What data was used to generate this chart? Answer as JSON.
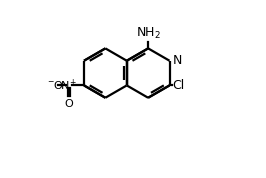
{
  "bg_color": "#ffffff",
  "bond_color": "#000000",
  "text_color": "#000000",
  "lw": 1.6,
  "doff": 0.018,
  "fs": 8.5,
  "fig_width": 2.66,
  "fig_height": 1.78,
  "dpi": 100,
  "R": 0.155,
  "cx_r": 0.595,
  "cy_r": 0.5,
  "xlim": [
    0.0,
    1.0
  ],
  "ylim": [
    -0.15,
    0.95
  ]
}
